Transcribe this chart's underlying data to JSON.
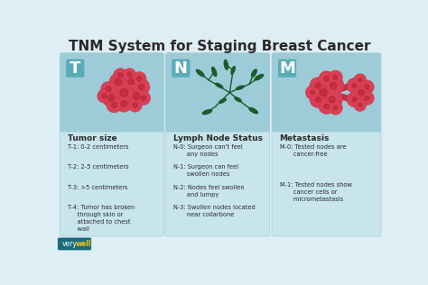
{
  "title": "TNM System for Staging Breast Cancer",
  "title_fontsize": 11,
  "bg_color": "#deeef5",
  "card_color": "#c8e4ec",
  "card_header_color": "#9dccd8",
  "letter_bg_color": "#5aabb8",
  "dark_text": "#2a2a2a",
  "footer_very": "very",
  "footer_well": "well",
  "footer_very_color": "#555555",
  "footer_well_color": "#e05060",
  "footer_bg": "#1a6a7a",
  "cards": [
    {
      "letter": "T",
      "subtitle": "Tumor size",
      "items": [
        "T-1: 0-2 centimeters",
        "T-2: 2-5 centimeters",
        "T-3: >5 centimeters",
        "T-4: Tumor has broken\n     through skin or\n     attached to chest\n     wall"
      ]
    },
    {
      "letter": "N",
      "subtitle": "Lymph Node Status",
      "items": [
        "N-0: Surgeon can't feel\n       any nodes",
        "N-1: Surgeon can feel\n       swollen nodes",
        "N-2: Nodes feel swollen\n       and lumpy",
        "N-3: Swollen nodes located\n       near collarbone"
      ]
    },
    {
      "letter": "M",
      "subtitle": "Metastasis",
      "items": [
        "M-0: Tested nodes are\n       cancer-free",
        "M-1: Tested nodes show\n       cancer cells or\n       micrometastasis"
      ]
    }
  ]
}
